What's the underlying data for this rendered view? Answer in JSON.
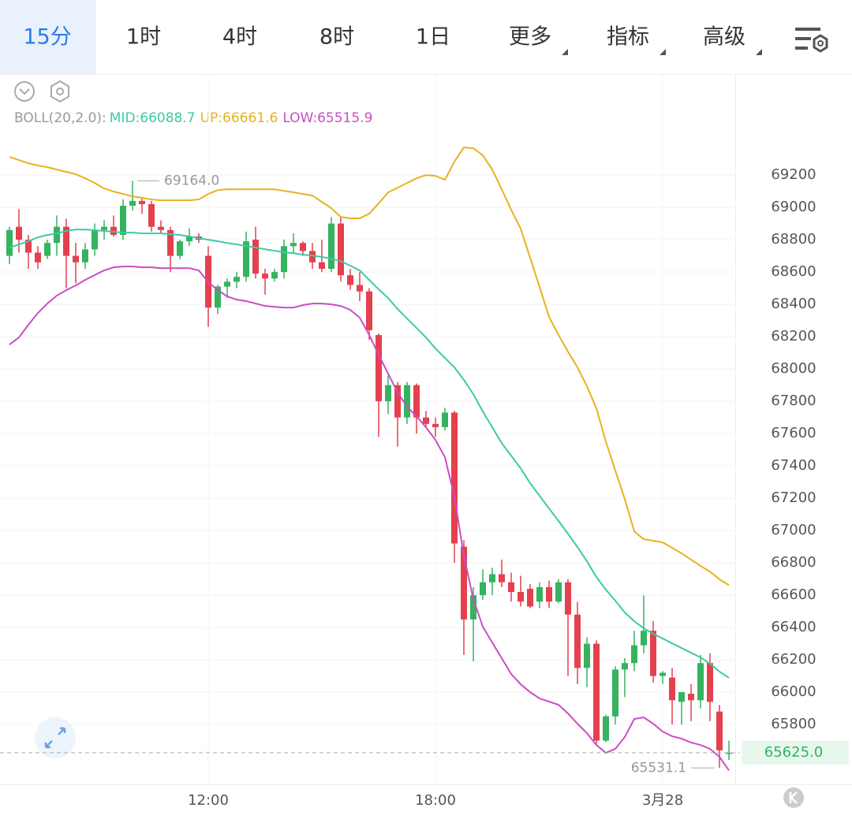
{
  "tabs": [
    "15分",
    "1时",
    "4时",
    "8时",
    "1日",
    "更多",
    "指标",
    "高级"
  ],
  "chart_data": {
    "type": "candlestick",
    "indicator_label": "BOLL(20,2.0):",
    "categories": [
      null,
      null,
      null,
      null,
      null,
      null,
      null,
      null,
      null,
      null,
      null,
      null,
      null,
      null,
      null,
      null,
      null,
      null,
      null,
      null,
      null,
      "12:00",
      null,
      null,
      null,
      null,
      null,
      null,
      null,
      null,
      null,
      null,
      null,
      null,
      null,
      null,
      null,
      null,
      null,
      null,
      null,
      null,
      null,
      null,
      null,
      "18:00",
      null,
      null,
      null,
      null,
      null,
      null,
      null,
      null,
      null,
      null,
      null,
      null,
      null,
      null,
      null,
      null,
      null,
      null,
      null,
      null,
      null,
      null,
      null,
      "3月28",
      null,
      null,
      null,
      null,
      null,
      null,
      null
    ],
    "open": [
      68700,
      68880,
      68800,
      68720,
      68700,
      68780,
      68880,
      68700,
      68660,
      68740,
      68860,
      68880,
      68830,
      69010,
      69040,
      69020,
      68880,
      68860,
      68700,
      68790,
      68820,
      68700,
      68380,
      68510,
      68540,
      68570,
      68800,
      68590,
      68560,
      68600,
      68760,
      68780,
      68730,
      68660,
      68620,
      68900,
      68580,
      68520,
      68480,
      68210,
      67800,
      67900,
      67700,
      67900,
      67700,
      67660,
      67640,
      67730,
      66900,
      66450,
      66600,
      66680,
      66730,
      66680,
      66620,
      66640,
      66560,
      66650,
      66560,
      66680,
      66480,
      66150,
      66300,
      65700,
      65850,
      66140,
      66180,
      66290,
      66380,
      66100,
      66090,
      65940,
      65990,
      65950,
      66180,
      65880,
      65620
    ],
    "high": [
      68880,
      68990,
      68830,
      68760,
      68800,
      68950,
      68930,
      68780,
      68780,
      68900,
      68920,
      68950,
      69050,
      69164,
      69060,
      69040,
      68920,
      68880,
      68800,
      68870,
      68840,
      68760,
      68520,
      68560,
      68600,
      68850,
      68880,
      68620,
      68620,
      68800,
      68840,
      68790,
      68780,
      68800,
      68940,
      68940,
      68620,
      68600,
      68500,
      68220,
      67960,
      67920,
      67920,
      67910,
      67740,
      67700,
      67760,
      67740,
      66940,
      66650,
      66760,
      66770,
      66820,
      66740,
      66720,
      66670,
      66680,
      66690,
      66700,
      66700,
      66560,
      66340,
      66320,
      65860,
      66160,
      66210,
      66380,
      66600,
      66440,
      66130,
      66150,
      66000,
      66050,
      66230,
      66240,
      65920,
      65700
    ],
    "low": [
      68650,
      68720,
      68620,
      68620,
      68680,
      68700,
      68500,
      68530,
      68620,
      68700,
      68800,
      68820,
      68800,
      68980,
      68960,
      68850,
      68840,
      68600,
      68680,
      68760,
      68780,
      68260,
      68340,
      68440,
      68500,
      68540,
      68560,
      68460,
      68540,
      68560,
      68720,
      68700,
      68620,
      68600,
      68600,
      68540,
      68490,
      68420,
      68180,
      67580,
      67720,
      67520,
      67660,
      67600,
      67640,
      67580,
      67620,
      66800,
      66230,
      66190,
      66570,
      66600,
      66650,
      66560,
      66530,
      66520,
      66520,
      66520,
      66550,
      66100,
      66050,
      66030,
      65680,
      65690,
      65800,
      65970,
      66130,
      66240,
      66060,
      66050,
      65800,
      65800,
      65820,
      65900,
      65820,
      65531.1,
      65580
    ],
    "close": [
      68860,
      68800,
      68720,
      68660,
      68780,
      68880,
      68700,
      68660,
      68740,
      68860,
      68880,
      68830,
      69010,
      69040,
      69020,
      68880,
      68860,
      68700,
      68790,
      68820,
      68800,
      68380,
      68510,
      68540,
      68570,
      68790,
      68590,
      68560,
      68600,
      68760,
      68780,
      68730,
      68660,
      68620,
      68900,
      68580,
      68520,
      68480,
      68240,
      67800,
      67900,
      67700,
      67900,
      67700,
      67660,
      67640,
      67730,
      66920,
      66450,
      66600,
      66680,
      66730,
      66680,
      66620,
      66560,
      66530,
      66650,
      66560,
      66680,
      66480,
      66150,
      66300,
      65700,
      65850,
      66140,
      66180,
      66290,
      66380,
      66100,
      66120,
      65950,
      66000,
      65950,
      66180,
      65940,
      65640,
      65625
    ],
    "up_color": "#35b35f",
    "down_color": "#e4404e",
    "series": [
      {
        "name": "MID:66088.7",
        "color": "#3ccaa6",
        "values": [
          68751,
          68771,
          68790,
          68815,
          68829,
          68839,
          68854,
          68863,
          68863,
          68859,
          68854,
          68849,
          68844,
          68844,
          68839,
          68839,
          68839,
          68834,
          68829,
          68820,
          68810,
          68800,
          68790,
          68780,
          68771,
          68761,
          68751,
          68741,
          68732,
          68722,
          68717,
          68707,
          68702,
          68693,
          68683,
          68668,
          68639,
          68610,
          68551,
          68493,
          68439,
          68371,
          68312,
          68254,
          68195,
          68127,
          68068,
          68010,
          67932,
          67844,
          67737,
          67639,
          67541,
          67463,
          67385,
          67293,
          67215,
          67137,
          67059,
          66980,
          66898,
          66810,
          66712,
          66634,
          66566,
          66493,
          66439,
          66395,
          66361,
          66332,
          66302,
          66273,
          66244,
          66215,
          66176,
          66127,
          66088.7
        ]
      },
      {
        "name": "UP:66661.6",
        "color": "#e8b21c",
        "values": [
          69312,
          69293,
          69273,
          69259,
          69249,
          69234,
          69220,
          69205,
          69180,
          69151,
          69117,
          69098,
          69083,
          69068,
          69059,
          69049,
          69044,
          69044,
          69044,
          69044,
          69049,
          69083,
          69107,
          69112,
          69112,
          69112,
          69112,
          69112,
          69112,
          69102,
          69093,
          69083,
          69073,
          69034,
          68995,
          68941,
          68932,
          68932,
          68961,
          69024,
          69093,
          69122,
          69151,
          69180,
          69200,
          69195,
          69171,
          69283,
          69371,
          69366,
          69322,
          69234,
          69112,
          68985,
          68868,
          68688,
          68507,
          68322,
          68210,
          68107,
          68010,
          67893,
          67756,
          67551,
          67371,
          67195,
          66995,
          66946,
          66937,
          66927,
          66893,
          66859,
          66820,
          66781,
          66746,
          66698,
          66661.6
        ]
      },
      {
        "name": "LOW:65515.9",
        "color": "#cc4cc4",
        "values": [
          68151,
          68195,
          68273,
          68346,
          68405,
          68454,
          68488,
          68517,
          68551,
          68581,
          68610,
          68629,
          68634,
          68634,
          68629,
          68629,
          68624,
          68624,
          68624,
          68624,
          68610,
          68537,
          68488,
          68449,
          68429,
          68420,
          68405,
          68390,
          68385,
          68380,
          68380,
          68395,
          68405,
          68405,
          68400,
          68390,
          68366,
          68317,
          68210,
          68088,
          67971,
          67854,
          67766,
          67707,
          67639,
          67561,
          67454,
          67210,
          66844,
          66576,
          66405,
          66307,
          66210,
          66112,
          66049,
          66000,
          65961,
          65941,
          65922,
          65868,
          65805,
          65746,
          65673,
          65624,
          65649,
          65722,
          65834,
          65844,
          65805,
          65756,
          65727,
          65712,
          65688,
          65673,
          65649,
          65600,
          65515.9
        ]
      }
    ],
    "ylim": [
      65430,
      69820
    ],
    "yticks": [
      65800,
      66000,
      66200,
      66400,
      66600,
      66800,
      67000,
      67200,
      67400,
      67600,
      67800,
      68000,
      68200,
      68400,
      68600,
      68800,
      69000,
      69200
    ],
    "grid": true,
    "max_marker": {
      "value": 69164,
      "label": "69164.0"
    },
    "min_marker": {
      "value": 65531.1,
      "label": "65531.1"
    },
    "last_price": {
      "value": 65625,
      "label": "65625.0"
    }
  }
}
